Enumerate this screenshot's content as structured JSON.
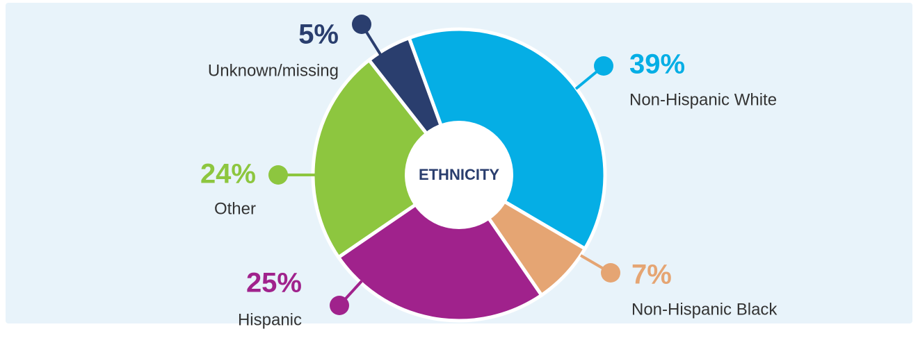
{
  "chart_data": {
    "type": "donut",
    "center_label": "ETHNICITY",
    "categories": [
      "Non-Hispanic White",
      "Non-Hispanic Black",
      "Hispanic",
      "Other",
      "Unknown/missing"
    ],
    "values": [
      39,
      7,
      25,
      24,
      5
    ],
    "value_labels": [
      "39%",
      "7%",
      "25%",
      "24%",
      "5%"
    ],
    "colors": [
      "#05aee5",
      "#e5a573",
      "#a0228c",
      "#8dc63f",
      "#2a3e6e"
    ]
  }
}
